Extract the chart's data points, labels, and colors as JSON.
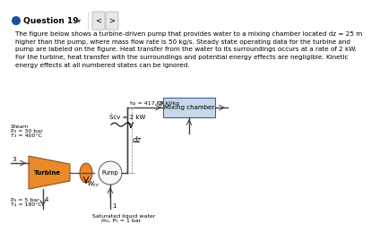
{
  "title_bar": "Question 19",
  "body_text": "The figure below shows a turbine-driven pump that provides water to a mixing chamber located dz = 25 m\nhigher than the pump, where mass flow rate is 50 kg/s. Steady state operating data for the turbine and\npump are labeled on the figure. Heat transfer from the water to its surroundings occurs at a rate of 2 kW.\nFor the turbine, heat transfer with the surroundings and potential energy effects are negligible. Kinetic\nenergy effects at all numbered states can be ignored.",
  "label_h2": "h₂ = 417.69 kJ/kg",
  "label_Qcv": "Ṡcv = 2 kW",
  "label_dz": "dz",
  "label_mixing": "Mixing chamber",
  "label_turbine": "Turbine",
  "label_pump": "Pump",
  "label_steam": "Steam",
  "label_P3": "P₃ = 30 bar",
  "label_T3": "T₃ = 400°C",
  "label_P4": "P₄ = 5 bar",
  "label_T4": "T₄ = 180°C",
  "label_sat": "Saturated liquid water",
  "label_m1": "ṁ₁, P₁ = 1 bar",
  "turbine_color": "#E8892A",
  "pump_facecolor": "#F8F8F8",
  "coupling_color": "#E8892A",
  "mixing_box_color": "#C8D8E8",
  "bg_color": "#FFFFFF",
  "header_bg": "#F0F0F0",
  "line_color": "#404040",
  "text_color": "#333333"
}
